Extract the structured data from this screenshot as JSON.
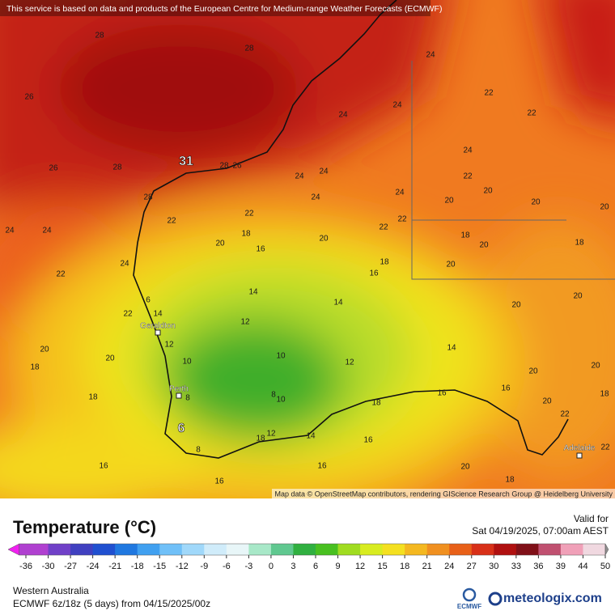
{
  "banner": "This service is based on data and products of the European Centre for Medium-range Weather Forecasts (ECMWF)",
  "attribution": "Map data © OpenStreetMap contributors, rendering GIScience Research Group @ Heidelberg University",
  "cities": [
    "Geraldton",
    "Perth",
    "Adelaide"
  ],
  "extremes": {
    "max": "31",
    "min": "6"
  },
  "contour_labels": [
    28,
    28,
    26,
    26,
    28,
    28,
    26,
    28,
    24,
    24,
    24,
    22,
    22,
    24,
    22,
    20,
    20,
    20,
    20,
    24,
    24,
    24,
    24,
    22,
    22,
    22,
    22,
    18,
    20,
    16,
    20,
    18,
    16,
    24,
    24,
    24,
    22,
    22,
    6,
    14,
    14,
    14,
    12,
    12,
    10,
    10,
    12,
    20,
    20,
    18,
    18,
    8,
    8,
    10,
    18,
    16,
    14,
    16,
    20,
    20,
    20,
    20,
    18,
    20,
    22,
    12,
    14,
    18,
    8,
    16,
    16,
    16,
    16,
    20,
    18,
    18,
    20,
    20,
    18,
    22
  ],
  "legend": {
    "title": "Temperature (°C)",
    "valid_label": "Valid for",
    "valid_time": "Sat 04/19/2025, 07:00am AEST",
    "region": "Western Australia",
    "model": "ECMWF 6z/18z (5 days) from 04/15/2025/00z",
    "logo_small": "ECMWF",
    "logo": "meteologix.com"
  },
  "colorbar": {
    "ticks": [
      -36,
      -30,
      -27,
      -24,
      -21,
      -18,
      -15,
      -12,
      -9,
      -6,
      -3,
      0,
      3,
      6,
      9,
      12,
      15,
      18,
      21,
      24,
      27,
      30,
      33,
      36,
      39,
      44,
      50
    ]
  }
}
